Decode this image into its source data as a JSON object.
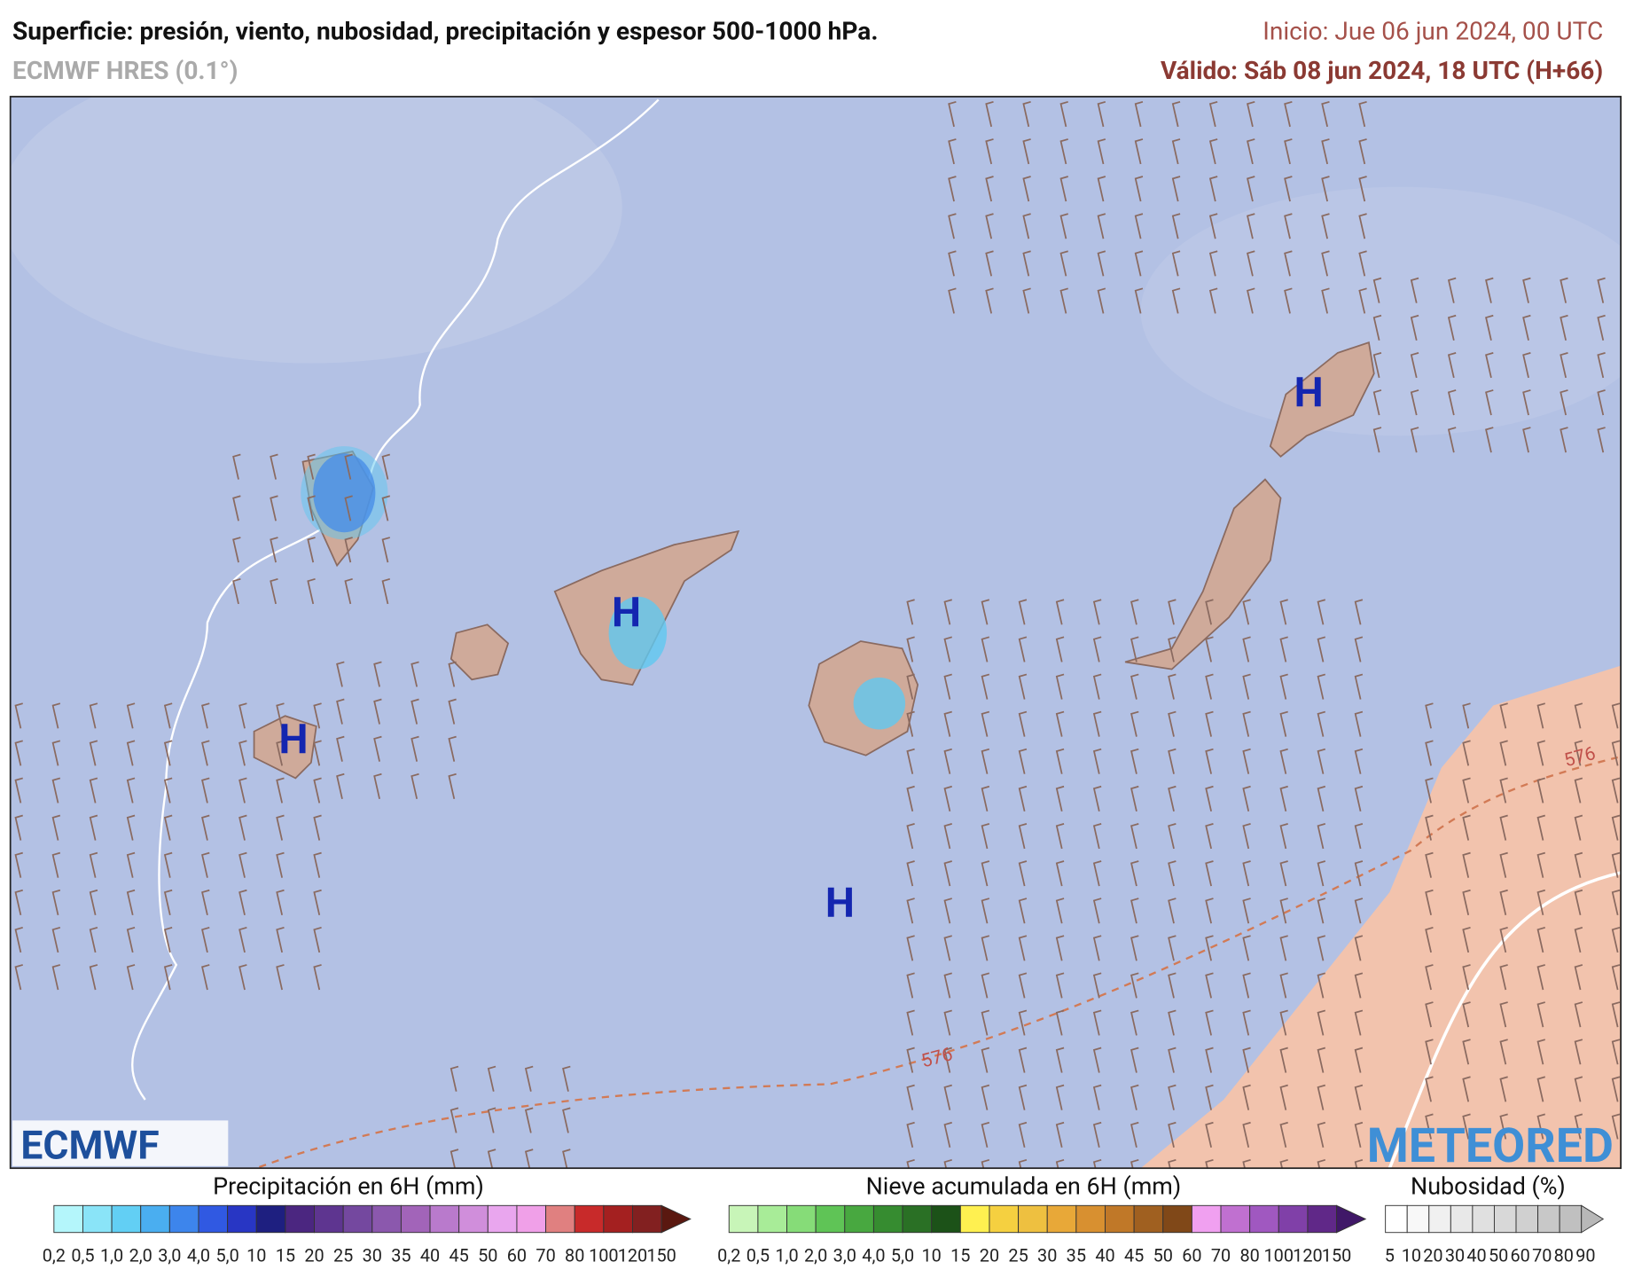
{
  "header": {
    "title": "Superficie: presión, viento, nubosidad, precipitación y espesor 500-1000 hPa.",
    "model": "ECMWF HRES (0.1°)",
    "init": "Inicio: Jue 06 jun 2024, 00 UTC",
    "valid": "Válido: Sáb 08 jun 2024, 18 UTC (H+66)"
  },
  "map": {
    "highs": [
      "H",
      "H",
      "H",
      "H"
    ],
    "thickness_labels": [
      "576",
      "576"
    ],
    "logos": [
      "ECMWF",
      "METEORED"
    ]
  },
  "legends": [
    {
      "title": "Precipitación en 6H (mm)",
      "labels": [
        "0,2",
        "0,5",
        "1,0",
        "2,0",
        "3,0",
        "4,0",
        "5,0",
        "10",
        "15",
        "20",
        "25",
        "30",
        "35",
        "40",
        "45",
        "50",
        "60",
        "70",
        "80",
        "100",
        "120",
        "150"
      ]
    },
    {
      "title": "Nieve acumulada en 6H (mm)",
      "labels": [
        "0,2",
        "0,5",
        "1,0",
        "2,0",
        "3,0",
        "4,0",
        "5,0",
        "10",
        "15",
        "20",
        "25",
        "30",
        "35",
        "40",
        "45",
        "50",
        "60",
        "70",
        "80",
        "100",
        "120",
        "150"
      ]
    },
    {
      "title": "Nubosidad (%)",
      "labels": [
        "5",
        "10",
        "20",
        "30",
        "40",
        "50",
        "60",
        "70",
        "80",
        "90"
      ]
    }
  ]
}
